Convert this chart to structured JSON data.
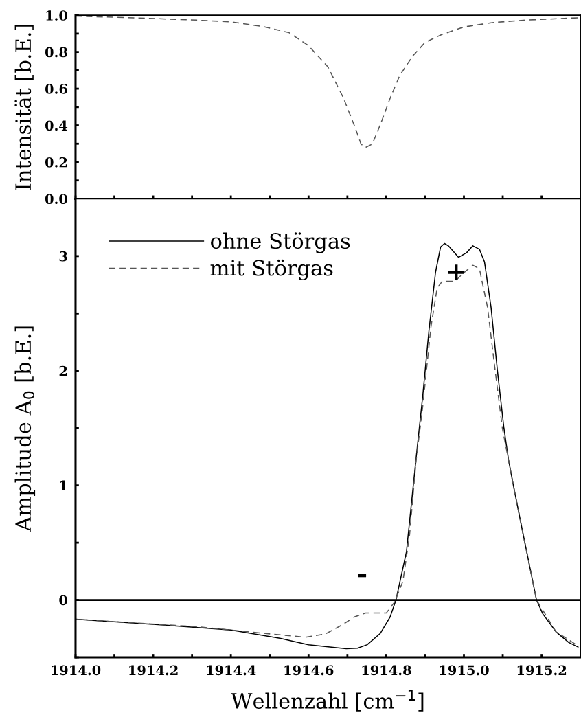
{
  "chart_data": [
    {
      "type": "line",
      "ylabel": "Intensität [b.E.]",
      "tick_labels": "y",
      "legend": false,
      "grid": false,
      "xlim": [
        1914.0,
        1915.3
      ],
      "ylim": [
        0.0,
        1.0
      ],
      "xticks": [
        {
          "value": 1914.0,
          "label": null
        },
        {
          "value": 1914.1,
          "label": null
        },
        {
          "value": 1914.2,
          "label": null
        },
        {
          "value": 1914.3,
          "label": null
        },
        {
          "value": 1914.4,
          "label": null
        },
        {
          "value": 1914.5,
          "label": null
        },
        {
          "value": 1914.6,
          "label": null
        },
        {
          "value": 1914.7,
          "label": null
        },
        {
          "value": 1914.8,
          "label": null
        },
        {
          "value": 1914.9,
          "label": null
        },
        {
          "value": 1915.0,
          "label": null
        },
        {
          "value": 1915.1,
          "label": null
        },
        {
          "value": 1915.2,
          "label": null
        }
      ],
      "yticks": [
        {
          "value": 0.0,
          "label": "0.0"
        },
        {
          "value": 0.1,
          "label": null
        },
        {
          "value": 0.2,
          "label": "0.2"
        },
        {
          "value": 0.3,
          "label": null
        },
        {
          "value": 0.4,
          "label": "0.4"
        },
        {
          "value": 0.5,
          "label": null
        },
        {
          "value": 0.6,
          "label": "0.6"
        },
        {
          "value": 0.7,
          "label": null
        },
        {
          "value": 0.8,
          "label": "0.8"
        },
        {
          "value": 0.9,
          "label": null
        },
        {
          "value": 1.0,
          "label": "1.0"
        }
      ],
      "series": [
        {
          "color": "#555555",
          "line_style": "dashed",
          "x": [
            1914.0,
            1914.149,
            1914.316,
            1914.4,
            1914.484,
            1914.55,
            1914.6,
            1914.65,
            1914.69,
            1914.72,
            1914.735,
            1914.747,
            1914.764,
            1914.785,
            1914.81,
            1914.835,
            1914.869,
            1914.9,
            1914.944,
            1915.0,
            1915.07,
            1915.153,
            1915.294
          ],
          "values": [
            0.995,
            0.986,
            0.973,
            0.964,
            0.938,
            0.905,
            0.834,
            0.718,
            0.548,
            0.388,
            0.298,
            0.28,
            0.298,
            0.405,
            0.548,
            0.673,
            0.78,
            0.852,
            0.896,
            0.936,
            0.959,
            0.973,
            0.986
          ]
        }
      ]
    },
    {
      "type": "line",
      "xlabel": "Wellenzahl [cm$^{−1}$]",
      "ylabel": "Amplitude A$_{0}$ [b.E.]",
      "legend": "top left",
      "grid": false,
      "xlim": [
        1914.0,
        1915.3
      ],
      "ylim": [
        -0.5,
        3.5
      ],
      "xticks": [
        {
          "value": 1914.0,
          "label": "1914.0"
        },
        {
          "value": 1914.1,
          "label": null
        },
        {
          "value": 1914.2,
          "label": "1914.2"
        },
        {
          "value": 1914.3,
          "label": null
        },
        {
          "value": 1914.4,
          "label": "1914.4"
        },
        {
          "value": 1914.5,
          "label": null
        },
        {
          "value": 1914.6,
          "label": "1914.6"
        },
        {
          "value": 1914.7,
          "label": null
        },
        {
          "value": 1914.8,
          "label": "1914.8"
        },
        {
          "value": 1914.9,
          "label": null
        },
        {
          "value": 1915.0,
          "label": "1915.0"
        },
        {
          "value": 1915.1,
          "label": null
        },
        {
          "value": 1915.2,
          "label": "1915.2"
        }
      ],
      "yticks": [
        {
          "value": -0.5,
          "label": null
        },
        0,
        {
          "value": 0.5,
          "label": null
        },
        1,
        {
          "value": 1.5,
          "label": null
        },
        2,
        {
          "value": 2.5,
          "label": null
        },
        3
      ],
      "ref_lines": [
        {
          "axis": "y",
          "value": 0,
          "label": null,
          "color": "#000000",
          "line_style": "solid"
        }
      ],
      "annotations": [
        "+",
        "-"
      ],
      "series": [
        {
          "name": "ohne Störgas",
          "color": "#000000",
          "line_style": "solid",
          "x": [
            1914.0,
            1914.233,
            1914.4,
            1914.526,
            1914.6,
            1914.697,
            1914.726,
            1914.751,
            1914.785,
            1914.81,
            1914.825,
            1914.852,
            1914.877,
            1914.894,
            1914.91,
            1914.927,
            1914.94,
            1914.95,
            1914.96,
            1914.986,
            1915.007,
            1915.023,
            1915.04,
            1915.053,
            1915.07,
            1915.086,
            1915.103,
            1915.115,
            1915.128,
            1915.153,
            1915.187,
            1915.203,
            1915.237,
            1915.27,
            1915.294
          ],
          "values": [
            -0.168,
            -0.22,
            -0.262,
            -0.334,
            -0.39,
            -0.425,
            -0.42,
            -0.39,
            -0.29,
            -0.148,
            0.0,
            0.42,
            1.24,
            1.78,
            2.35,
            2.86,
            3.08,
            3.11,
            3.09,
            2.99,
            3.03,
            3.09,
            3.06,
            2.95,
            2.55,
            2.01,
            1.5,
            1.22,
            0.99,
            0.565,
            0.0,
            -0.12,
            -0.277,
            -0.37,
            -0.41
          ]
        },
        {
          "name": "mit Störgas",
          "color": "#555555",
          "line_style": "dashed",
          "x": [
            1914.0,
            1914.316,
            1914.484,
            1914.592,
            1914.643,
            1914.685,
            1914.718,
            1914.747,
            1914.8,
            1914.821,
            1914.843,
            1914.86,
            1914.877,
            1914.894,
            1914.915,
            1914.931,
            1914.944,
            1914.977,
            1914.998,
            1915.023,
            1915.04,
            1915.061,
            1915.078,
            1915.099,
            1915.128,
            1915.153,
            1915.187,
            1915.237,
            1915.294
          ],
          "values": [
            -0.168,
            -0.234,
            -0.29,
            -0.325,
            -0.297,
            -0.22,
            -0.148,
            -0.114,
            -0.114,
            -0.02,
            0.165,
            0.565,
            1.22,
            1.69,
            2.38,
            2.72,
            2.78,
            2.78,
            2.85,
            2.92,
            2.89,
            2.55,
            2.07,
            1.5,
            0.99,
            0.565,
            0.0,
            -0.277,
            -0.4
          ]
        }
      ]
    }
  ]
}
